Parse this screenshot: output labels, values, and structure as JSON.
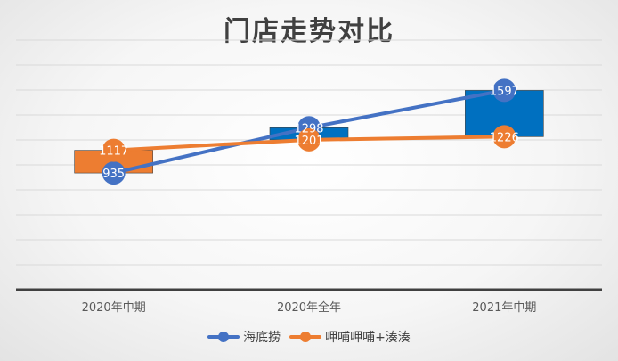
{
  "chart_data": {
    "type": "line",
    "title": "门店走势对比",
    "categories": [
      "2020年中期",
      "2020年全年",
      "2021年中期"
    ],
    "series": [
      {
        "name": "海底捞",
        "values": [
          935,
          1298,
          1597
        ],
        "color": "#4472C4"
      },
      {
        "name": "呷哺呷哺+湊湊",
        "values": [
          1117,
          1201,
          1226
        ],
        "color": "#ED7D31"
      }
    ],
    "updown_bars": true,
    "up_bar_color": "#0070C0",
    "down_bar_color": "#ED7D31",
    "ylim": [
      0,
      2000
    ],
    "grid": true,
    "y_tick_labels_shown": false,
    "data_labels": true,
    "legend_position": "bottom"
  }
}
